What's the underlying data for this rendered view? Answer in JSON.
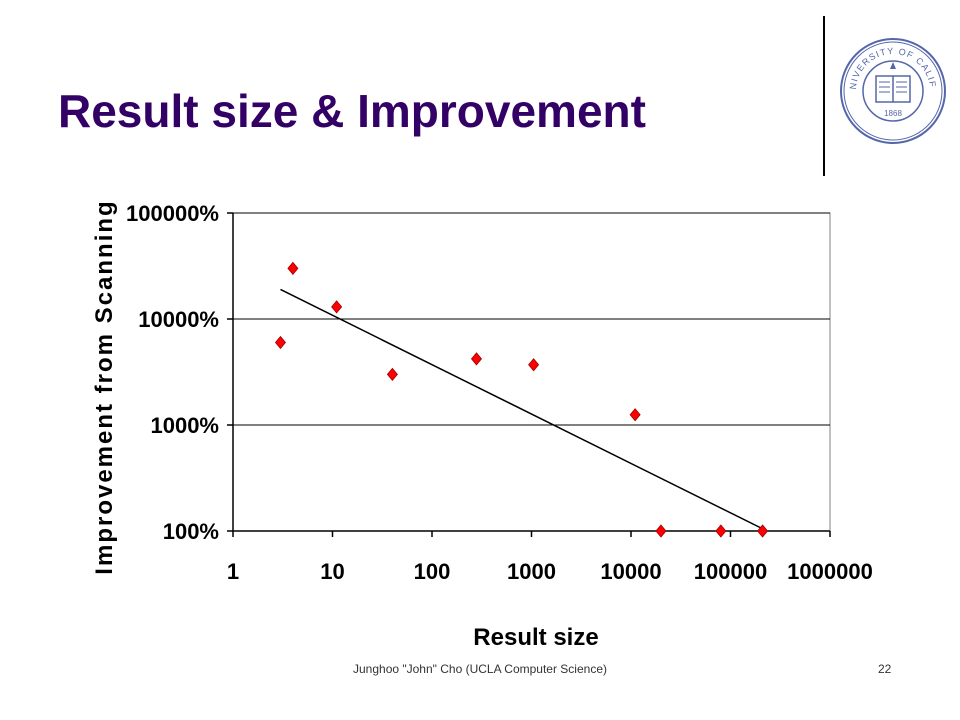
{
  "slide": {
    "title": "Result size & Improvement",
    "footer_author": "Junghoo \"John\" Cho (UCLA  Computer Science)",
    "page_number": "22"
  },
  "logo": {
    "name": "University of California seal",
    "text_top": "THE UNIVERSITY OF CALIFORNIA",
    "text_year": "1868",
    "color": "#5566aa"
  },
  "chart_data": {
    "type": "scatter",
    "xlabel": "Result size",
    "ylabel": "Improvement from Scanning",
    "x_scale": "log",
    "y_scale": "log",
    "xlim": [
      1,
      1000000
    ],
    "ylim": [
      1,
      1000
    ],
    "x_tick_values": [
      1,
      10,
      100,
      1000,
      10000,
      100000,
      1000000
    ],
    "x_tick_labels": [
      "1",
      "10",
      "100",
      "1000",
      "10000",
      "100000",
      "1000000"
    ],
    "y_tick_values": [
      1,
      10,
      100,
      1000
    ],
    "y_tick_labels": [
      "100%",
      "1000%",
      "10000%",
      "100000%"
    ],
    "grid": "horizontal",
    "legend": "none",
    "series": [
      {
        "marker": "diamond",
        "color": "#ff0000",
        "points": [
          {
            "x": 3,
            "y": 60
          },
          {
            "x": 4,
            "y": 300
          },
          {
            "x": 11,
            "y": 130
          },
          {
            "x": 40,
            "y": 30
          },
          {
            "x": 280,
            "y": 42
          },
          {
            "x": 1050,
            "y": 37
          },
          {
            "x": 11000,
            "y": 12.5
          },
          {
            "x": 20000,
            "y": 1
          },
          {
            "x": 80000,
            "y": 1
          },
          {
            "x": 210000,
            "y": 1
          }
        ]
      }
    ],
    "trendline": {
      "type": "power",
      "color": "#000000",
      "from": {
        "x": 3,
        "y": 190
      },
      "to": {
        "x": 210000,
        "y": 1.05
      }
    }
  }
}
